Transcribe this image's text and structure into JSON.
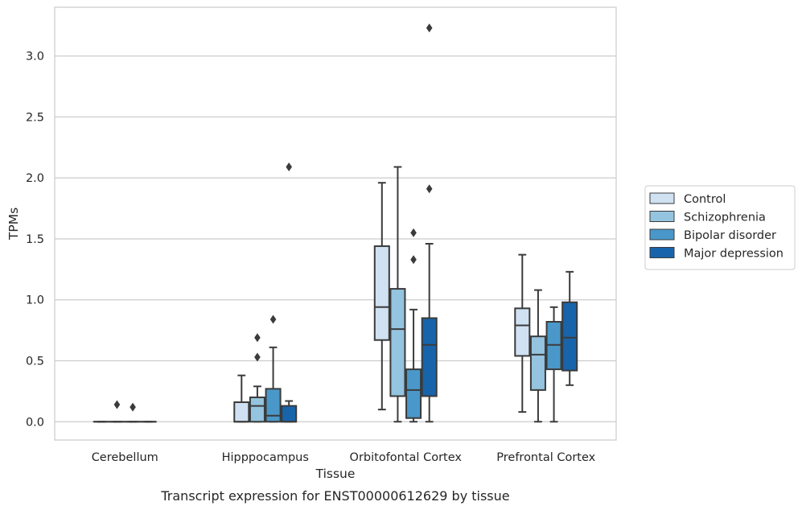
{
  "chart_data": {
    "type": "box",
    "caption": "Transcript expression for ENST00000612629 by tissue",
    "xlabel": "Tissue",
    "ylabel": "TPMs",
    "ylim": [
      -0.15,
      3.4
    ],
    "yticks": [
      0.0,
      0.5,
      1.0,
      1.5,
      2.0,
      2.5,
      3.0
    ],
    "ytick_labels": [
      "0.0",
      "0.5",
      "1.0",
      "1.5",
      "2.0",
      "2.5",
      "3.0"
    ],
    "grid": "horizontal",
    "legend_placement": "right",
    "categories": [
      "Cerebellum",
      "Hipppocampus",
      "Orbitofontal Cortex",
      "Prefrontal Cortex"
    ],
    "series": [
      {
        "name": "Control",
        "color": "#d0e1f2",
        "boxes": [
          {
            "whislo": 0.0,
            "q1": 0.0,
            "med": 0.0,
            "q3": 0.0,
            "whishi": 0.0,
            "fliers": []
          },
          {
            "whislo": 0.0,
            "q1": 0.0,
            "med": 0.0,
            "q3": 0.16,
            "whishi": 0.38,
            "fliers": []
          },
          {
            "whislo": 0.1,
            "q1": 0.67,
            "med": 0.94,
            "q3": 1.44,
            "whishi": 1.96,
            "fliers": []
          },
          {
            "whislo": 0.08,
            "q1": 0.54,
            "med": 0.79,
            "q3": 0.93,
            "whishi": 1.37,
            "fliers": []
          }
        ]
      },
      {
        "name": "Schizophrenia",
        "color": "#94c4df",
        "boxes": [
          {
            "whislo": 0.0,
            "q1": 0.0,
            "med": 0.0,
            "q3": 0.0,
            "whishi": 0.0,
            "fliers": [
              0.14
            ]
          },
          {
            "whislo": 0.0,
            "q1": 0.0,
            "med": 0.13,
            "q3": 0.2,
            "whishi": 0.29,
            "fliers": [
              0.53,
              0.69
            ]
          },
          {
            "whislo": 0.0,
            "q1": 0.21,
            "med": 0.76,
            "q3": 1.09,
            "whishi": 2.09,
            "fliers": []
          },
          {
            "whislo": 0.0,
            "q1": 0.26,
            "med": 0.55,
            "q3": 0.7,
            "whishi": 1.08,
            "fliers": []
          }
        ]
      },
      {
        "name": "Bipolar disorder",
        "color": "#4a98c9",
        "boxes": [
          {
            "whislo": 0.0,
            "q1": 0.0,
            "med": 0.0,
            "q3": 0.0,
            "whishi": 0.0,
            "fliers": [
              0.12
            ]
          },
          {
            "whislo": 0.0,
            "q1": 0.0,
            "med": 0.05,
            "q3": 0.27,
            "whishi": 0.61,
            "fliers": [
              0.84
            ]
          },
          {
            "whislo": 0.0,
            "q1": 0.03,
            "med": 0.26,
            "q3": 0.43,
            "whishi": 0.92,
            "fliers": [
              1.33,
              1.55
            ]
          },
          {
            "whislo": 0.0,
            "q1": 0.43,
            "med": 0.63,
            "q3": 0.82,
            "whishi": 0.94,
            "fliers": []
          }
        ]
      },
      {
        "name": "Major depression",
        "color": "#1764ab",
        "boxes": [
          {
            "whislo": 0.0,
            "q1": 0.0,
            "med": 0.0,
            "q3": 0.0,
            "whishi": 0.0,
            "fliers": []
          },
          {
            "whislo": 0.0,
            "q1": 0.0,
            "med": 0.0,
            "q3": 0.13,
            "whishi": 0.17,
            "fliers": [
              2.09
            ]
          },
          {
            "whislo": 0.0,
            "q1": 0.21,
            "med": 0.63,
            "q3": 0.85,
            "whishi": 1.46,
            "fliers": [
              1.91,
              3.23
            ]
          },
          {
            "whislo": 0.3,
            "q1": 0.42,
            "med": 0.69,
            "q3": 0.98,
            "whishi": 1.23,
            "fliers": []
          }
        ]
      }
    ]
  }
}
